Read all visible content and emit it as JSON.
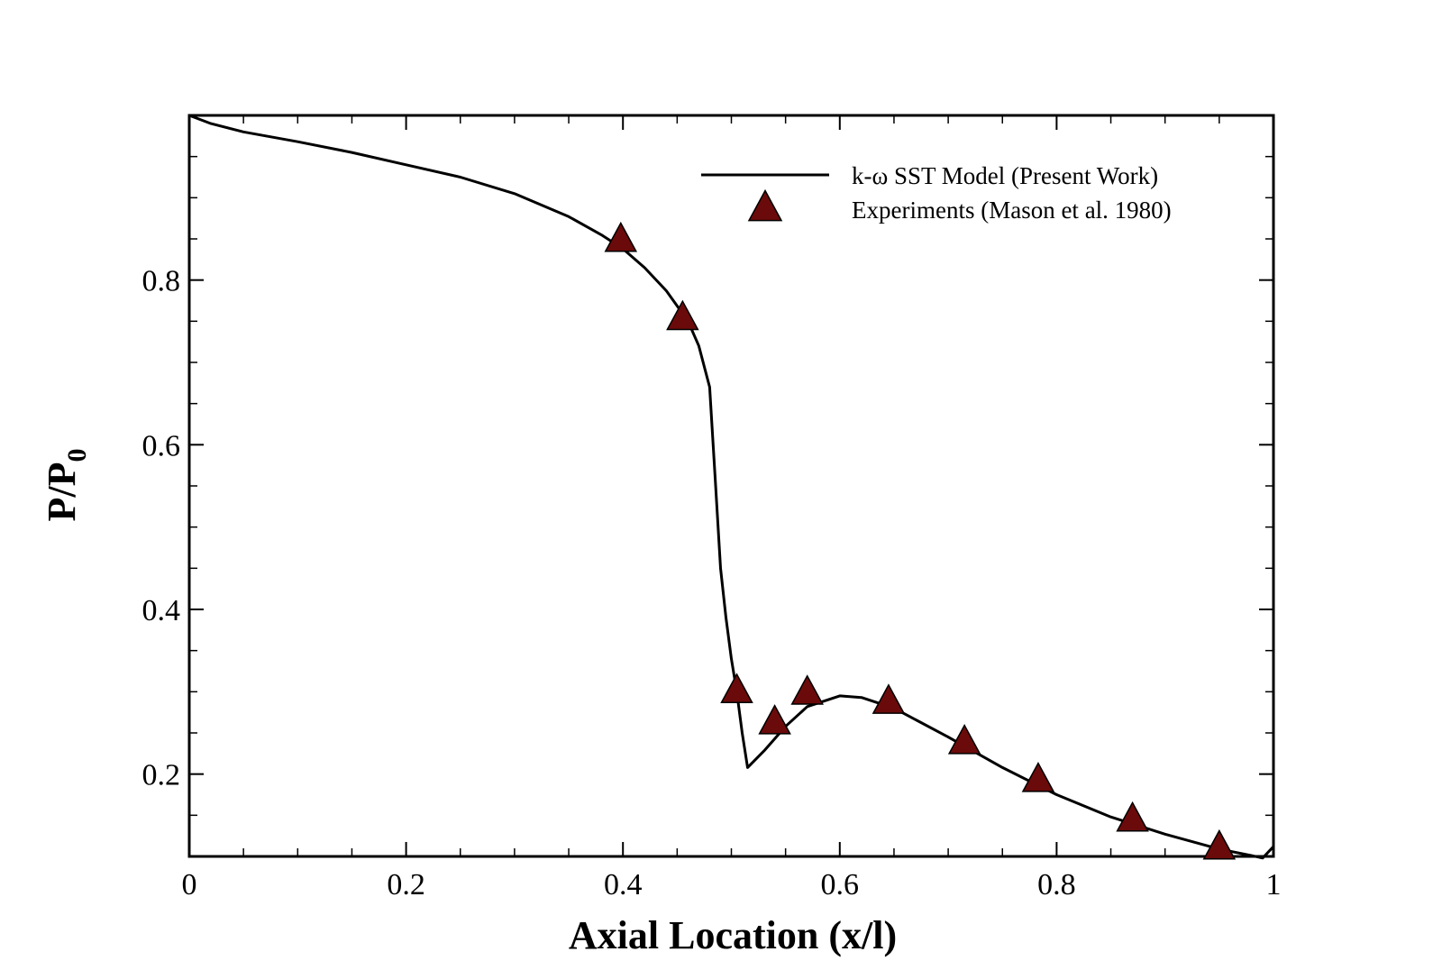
{
  "chart_data": {
    "type": "line",
    "xlabel": "Axial Location (x/l)",
    "ylabel_main": "P/P",
    "ylabel_sub": "0",
    "xlim": [
      0,
      1
    ],
    "ylim": [
      0.1,
      1.0
    ],
    "xticks": [
      0,
      0.2,
      0.4,
      0.6,
      0.8,
      1
    ],
    "xtick_labels": [
      "0",
      "0.2",
      "0.4",
      "0.6",
      "0.8",
      "1"
    ],
    "yticks": [
      0.2,
      0.4,
      0.6,
      0.8
    ],
    "ytick_labels": [
      "0.2",
      "0.4",
      "0.6",
      "0.8"
    ],
    "legend_position": "top-right",
    "series": [
      {
        "name": "k-ω SST Model (Present Work)",
        "kind": "line",
        "color": "#000000",
        "x": [
          0,
          0.02,
          0.05,
          0.1,
          0.15,
          0.2,
          0.25,
          0.3,
          0.35,
          0.38,
          0.4,
          0.42,
          0.44,
          0.46,
          0.47,
          0.48,
          0.485,
          0.49,
          0.495,
          0.5,
          0.505,
          0.51,
          0.515,
          0.53,
          0.55,
          0.57,
          0.6,
          0.62,
          0.65,
          0.7,
          0.75,
          0.8,
          0.85,
          0.9,
          0.95,
          0.98,
          0.99,
          1.0
        ],
        "y": [
          1.0,
          0.99,
          0.98,
          0.968,
          0.955,
          0.94,
          0.925,
          0.905,
          0.877,
          0.855,
          0.838,
          0.815,
          0.787,
          0.75,
          0.72,
          0.67,
          0.56,
          0.45,
          0.39,
          0.34,
          0.3,
          0.25,
          0.208,
          0.228,
          0.258,
          0.282,
          0.295,
          0.293,
          0.28,
          0.245,
          0.208,
          0.175,
          0.148,
          0.127,
          0.109,
          0.101,
          0.098,
          0.112
        ]
      },
      {
        "name": "Experiments (Mason et al. 1980)",
        "kind": "scatter",
        "marker": "triangle",
        "color": "#6b0a0a",
        "x": [
          0.398,
          0.455,
          0.505,
          0.54,
          0.57,
          0.645,
          0.715,
          0.783,
          0.87,
          0.95
        ],
        "y": [
          0.848,
          0.753,
          0.3,
          0.262,
          0.298,
          0.287,
          0.238,
          0.192,
          0.144,
          0.11
        ]
      }
    ]
  }
}
